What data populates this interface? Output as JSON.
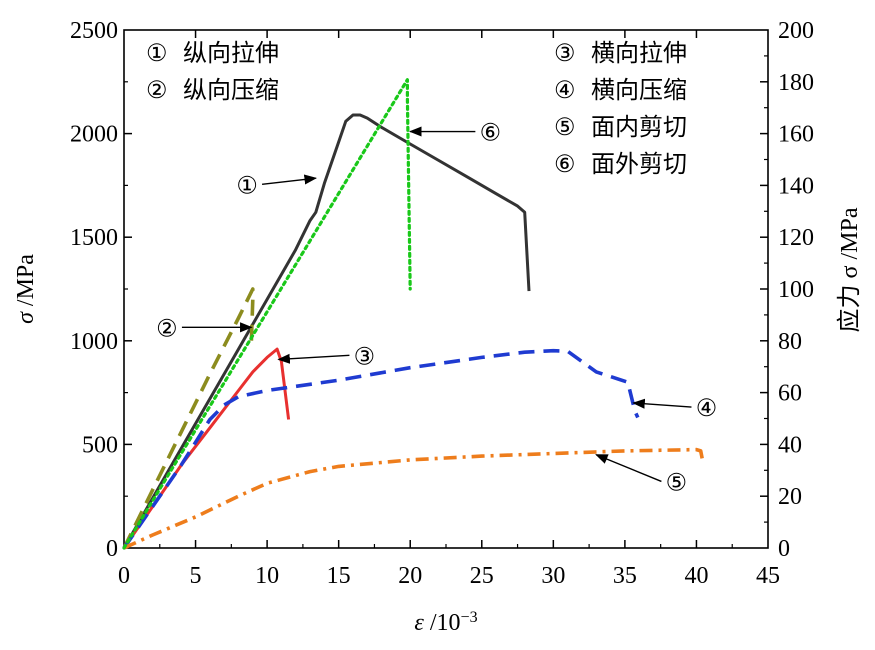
{
  "chart_data": {
    "type": "line",
    "x": {
      "label_symbol": "ε",
      "label_unit": " /10",
      "label_exp": "−3",
      "range": [
        0,
        45
      ],
      "ticks": [
        0,
        5,
        10,
        15,
        20,
        25,
        30,
        35,
        40,
        45
      ]
    },
    "y_left": {
      "label_symbol": "σ",
      "label_unit": " /MPa",
      "range": [
        0,
        2500
      ],
      "ticks": [
        0,
        500,
        1000,
        1500,
        2000,
        2500
      ]
    },
    "y_right": {
      "label": "应力 σ /MPa",
      "range": [
        0,
        200
      ],
      "ticks": [
        0,
        20,
        40,
        60,
        80,
        100,
        120,
        140,
        160,
        180,
        200
      ]
    },
    "legend_left": [
      {
        "marker": "①",
        "text": "纵向拉伸"
      },
      {
        "marker": "②",
        "text": "纵向压缩"
      }
    ],
    "legend_right": [
      {
        "marker": "③",
        "text": "横向拉伸"
      },
      {
        "marker": "④",
        "text": "横向压缩"
      },
      {
        "marker": "⑤",
        "text": "面内剪切"
      },
      {
        "marker": "⑥",
        "text": "面外剪切"
      }
    ],
    "series": [
      {
        "id": "1",
        "axis": "left",
        "color": "#333333",
        "style": "solid",
        "points": [
          [
            0,
            0
          ],
          [
            2,
            240
          ],
          [
            4,
            480
          ],
          [
            6,
            720
          ],
          [
            8,
            960
          ],
          [
            10,
            1200
          ],
          [
            12,
            1440
          ],
          [
            13,
            1580
          ],
          [
            13.4,
            1620
          ],
          [
            14,
            1760
          ],
          [
            15,
            1960
          ],
          [
            15.5,
            2060
          ],
          [
            16,
            2090
          ],
          [
            16.5,
            2090
          ],
          [
            17,
            2075
          ],
          [
            18,
            2030
          ],
          [
            20,
            1950
          ],
          [
            22,
            1870
          ],
          [
            24,
            1790
          ],
          [
            26,
            1710
          ],
          [
            27.5,
            1650
          ],
          [
            28,
            1620
          ],
          [
            28.3,
            1240
          ]
        ]
      },
      {
        "id": "2",
        "axis": "left",
        "color": "#8c8c1e",
        "style": "dash",
        "points": [
          [
            0,
            0
          ],
          [
            3,
            420
          ],
          [
            6,
            840
          ],
          [
            8,
            1110
          ],
          [
            9,
            1250
          ],
          [
            9,
            1200
          ],
          [
            8.9,
            1000
          ]
        ]
      },
      {
        "id": "3",
        "axis": "left",
        "color": "#e8302f",
        "style": "solid",
        "points": [
          [
            0,
            0
          ],
          [
            2,
            200
          ],
          [
            4,
            400
          ],
          [
            6,
            580
          ],
          [
            8,
            760
          ],
          [
            9,
            850
          ],
          [
            10,
            920
          ],
          [
            10.7,
            960
          ],
          [
            11,
            900
          ],
          [
            11.5,
            620
          ]
        ]
      },
      {
        "id": "4",
        "axis": "left",
        "color": "#1f3bd1",
        "style": "dash",
        "points": [
          [
            0,
            0
          ],
          [
            2,
            200
          ],
          [
            4,
            400
          ],
          [
            6,
            620
          ],
          [
            7,
            690
          ],
          [
            8,
            730
          ],
          [
            10,
            760
          ],
          [
            15,
            810
          ],
          [
            20,
            870
          ],
          [
            25,
            920
          ],
          [
            28,
            945
          ],
          [
            30,
            952
          ],
          [
            31,
            950
          ],
          [
            33,
            850
          ],
          [
            35.2,
            800
          ],
          [
            35.7,
            660
          ],
          [
            35.9,
            630
          ]
        ]
      },
      {
        "id": "5",
        "axis": "right",
        "color": "#ee7d1c",
        "style": "dashdot",
        "points": [
          [
            0,
            0
          ],
          [
            2,
            5
          ],
          [
            5,
            12
          ],
          [
            8,
            20
          ],
          [
            10,
            25
          ],
          [
            13,
            29.5
          ],
          [
            15,
            31.5
          ],
          [
            18,
            33
          ],
          [
            20,
            34
          ],
          [
            25,
            35.5
          ],
          [
            30,
            36.5
          ],
          [
            35,
            37.5
          ],
          [
            40,
            38
          ],
          [
            40.3,
            37.5
          ],
          [
            40.4,
            34.5
          ]
        ]
      },
      {
        "id": "6",
        "axis": "left",
        "color": "#19c819",
        "style": "dot",
        "points": [
          [
            0,
            0
          ],
          [
            10,
            1140
          ],
          [
            19.8,
            2260
          ],
          [
            19.8,
            2170
          ],
          [
            20,
            1250
          ]
        ]
      }
    ],
    "callouts": [
      {
        "marker": "①",
        "target": [
          13.4,
          1785
        ],
        "label_at": [
          8.6,
          1755
        ]
      },
      {
        "marker": "②",
        "target": [
          8.9,
          1065
        ],
        "label_at": [
          3.0,
          1065
        ]
      },
      {
        "marker": "③",
        "target": [
          10.8,
          910
        ],
        "label_at": [
          16.8,
          930
        ]
      },
      {
        "marker": "④",
        "target": [
          35.6,
          700
        ],
        "label_at": [
          40.7,
          680
        ]
      },
      {
        "marker": "⑤",
        "target": [
          33.0,
          36
        ],
        "label_at": [
          38.6,
          25.7
        ]
      },
      {
        "marker": "⑥",
        "target": [
          20.0,
          2010
        ],
        "label_at": [
          25.6,
          2010
        ]
      }
    ]
  }
}
